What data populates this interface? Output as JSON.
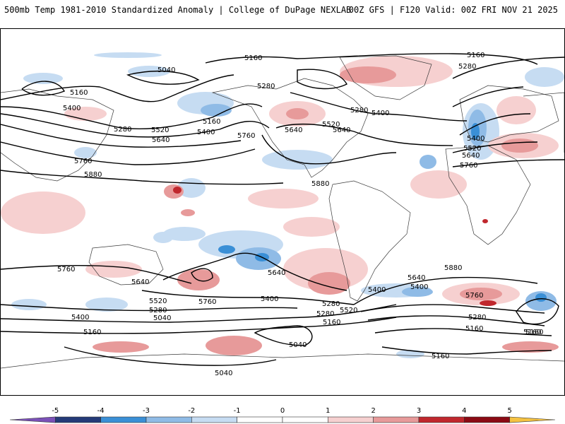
{
  "header": {
    "title_left": "500mb Temp 1981-2010 Standardized Anomaly | College of DuPage NEXLAB",
    "title_right": "00Z GFS | F120 Valid: 00Z FRI NOV 21 2025"
  },
  "colors": {
    "contour": "#000000",
    "coast": "#3a3a3a",
    "neg_light": "#c6dcf2",
    "neg_mid": "#8fbbe6",
    "neg_strong": "#3a8fd6",
    "pos_light": "#f6d0d0",
    "pos_mid": "#e79a9a",
    "pos_strong": "#c0272d",
    "pos_extreme": "#8b0a14"
  },
  "contour_labels": [
    "5160",
    "5040",
    "5160",
    "5400",
    "5280",
    "5520",
    "5640",
    "5760",
    "5880",
    "5280",
    "5160",
    "5400",
    "5640",
    "5520",
    "5640",
    "5280",
    "5400",
    "5760",
    "5280",
    "5160",
    "5400",
    "5520",
    "5640",
    "5760",
    "5880",
    "5760",
    "5640",
    "5520",
    "5400",
    "5280",
    "5040",
    "5160",
    "5760",
    "5640",
    "5400",
    "5280",
    "5160",
    "5040",
    "5520",
    "5400",
    "5280",
    "5160",
    "5640",
    "5400",
    "5760",
    "5880",
    "5280",
    "5160",
    "5160",
    "5040",
    "5160"
  ],
  "legend": {
    "ticks": [
      "-5",
      "-4",
      "-3",
      "-2",
      "-1",
      "0",
      "1",
      "2",
      "3",
      "4",
      "5"
    ],
    "colors": [
      "#7b51b8",
      "#243a78",
      "#3a8fd6",
      "#8fbbe6",
      "#c6dcf2",
      "#ffffff",
      "#ffffff",
      "#f6d0d0",
      "#e79a9a",
      "#c0272d",
      "#8b0a14",
      "#f5c242"
    ]
  }
}
